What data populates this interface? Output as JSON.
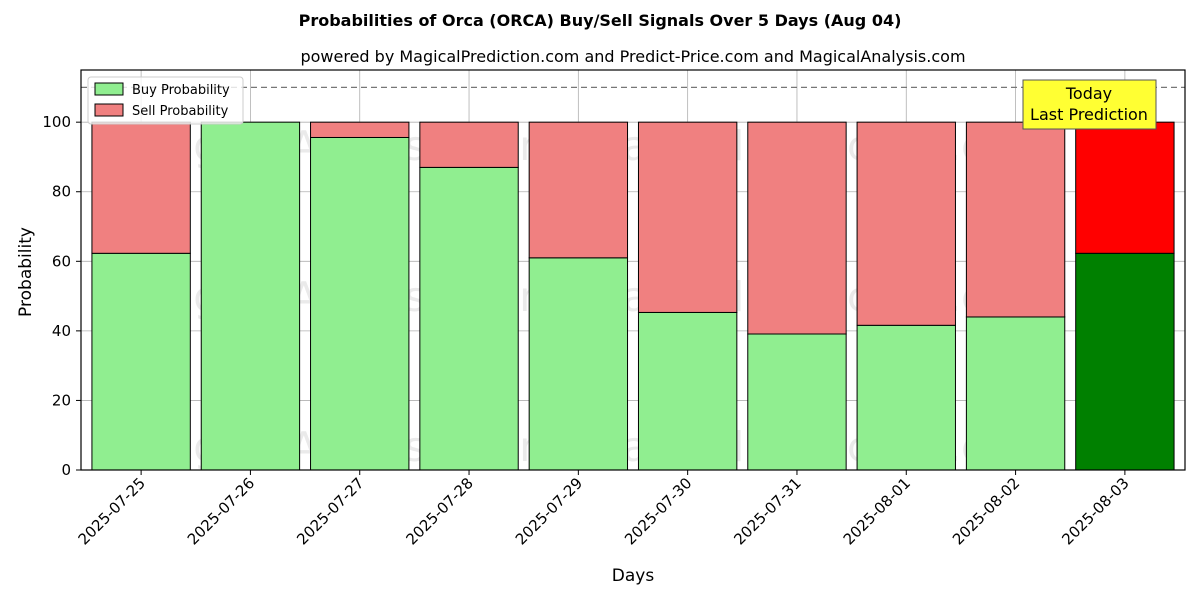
{
  "colors": {
    "buy": "#90ee90",
    "sell": "#f08080",
    "buy_today": "#008000",
    "sell_today": "#ff0000",
    "today_box": "#ffff33",
    "grid": "#b0b0b0"
  },
  "watermarks": [
    "MagicalAnalysis.com",
    "MagicalPrediction.com"
  ],
  "chart_data": {
    "type": "bar",
    "stacked": true,
    "title": "Probabilities of Orca (ORCA) Buy/Sell Signals Over 5 Days (Aug 04)",
    "subtitle": "powered by MagicalPrediction.com and Predict-Price.com and MagicalAnalysis.com",
    "xlabel": "Days",
    "ylabel": "Probability",
    "ylim": [
      0,
      115
    ],
    "yticks": [
      0,
      20,
      40,
      60,
      80,
      100
    ],
    "grid": true,
    "reference_line": 110,
    "categories": [
      "2025-07-25",
      "2025-07-26",
      "2025-07-27",
      "2025-07-28",
      "2025-07-29",
      "2025-07-30",
      "2025-07-31",
      "2025-08-01",
      "2025-08-02",
      "2025-08-03"
    ],
    "series": [
      {
        "name": "Buy Probability",
        "values": [
          62.3,
          100.0,
          95.6,
          87.0,
          61.0,
          45.3,
          39.1,
          41.6,
          44.0,
          62.3
        ]
      },
      {
        "name": "Sell Probability",
        "values": [
          37.7,
          0.0,
          4.4,
          13.0,
          39.0,
          54.7,
          60.9,
          58.4,
          56.0,
          37.7
        ]
      }
    ],
    "legend_position": "top-left",
    "annotation": {
      "lines": [
        "Today",
        "Last Prediction"
      ],
      "category": "2025-08-03"
    }
  }
}
